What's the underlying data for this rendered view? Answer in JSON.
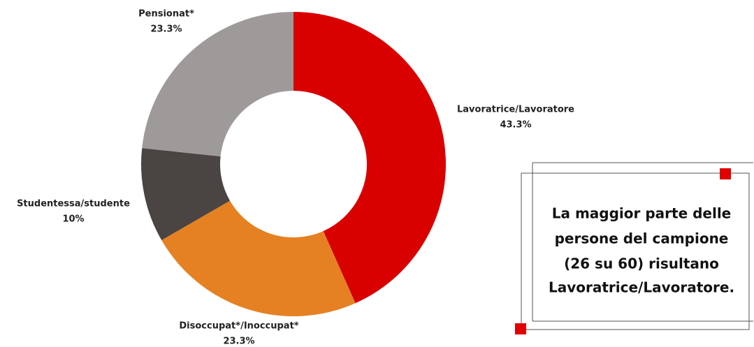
{
  "chart_data": {
    "type": "pie",
    "categories": [
      "Lavoratrice/Lavoratore",
      "Disoccupat*/Inoccupat*",
      "Studentessa/studente",
      "Pensionat*"
    ],
    "values": [
      43.3,
      23.3,
      10,
      23.3
    ],
    "value_labels": [
      "43.3%",
      "23.3%",
      "10%",
      "23.3%"
    ],
    "colors": [
      "#d90000",
      "#e58122",
      "#4a4442",
      "#9e9a99"
    ],
    "donut": true,
    "annotation": [
      "La maggior parte delle",
      "persone del campione",
      "(26 su 60) risultano",
      "Lavoratrice/Lavoratore."
    ]
  }
}
